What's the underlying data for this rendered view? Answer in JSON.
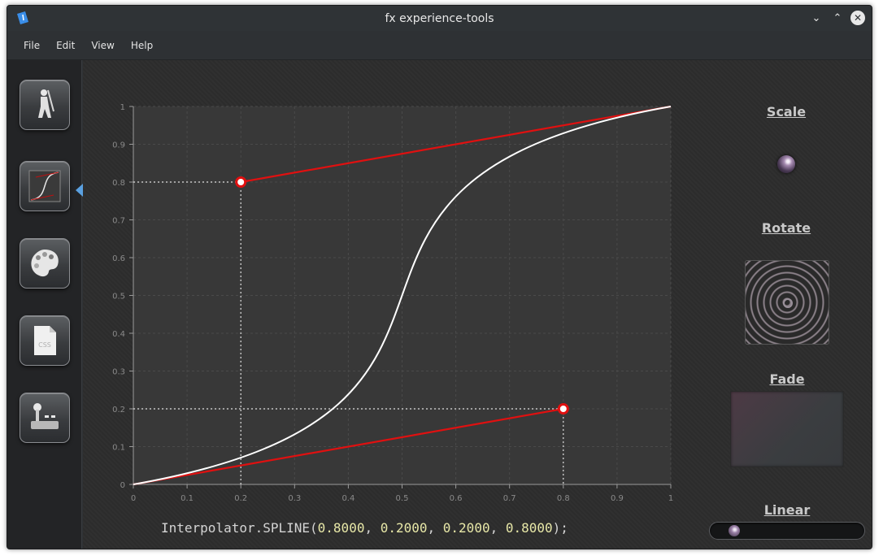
{
  "window": {
    "title": "fx experience-tools"
  },
  "menu": {
    "items": [
      "File",
      "Edit",
      "View",
      "Help"
    ]
  },
  "sidebar": {
    "items": [
      {
        "name": "mixer-tool",
        "icon": "figure-icon"
      },
      {
        "name": "interpolator-tool",
        "icon": "curve-chart-icon",
        "selected": true
      },
      {
        "name": "color-tool",
        "icon": "palette-icon"
      },
      {
        "name": "css-tool",
        "icon": "css-file-icon"
      },
      {
        "name": "controls-tool",
        "icon": "joystick-icon"
      }
    ]
  },
  "chart_data": {
    "type": "line",
    "title": "",
    "xlabel": "",
    "ylabel": "",
    "xlim": [
      0,
      1
    ],
    "ylim": [
      0,
      1
    ],
    "grid": true,
    "x_ticks": [
      "0",
      "0.1",
      "0.2",
      "0.3",
      "0.4",
      "0.5",
      "0.6",
      "0.7",
      "0.8",
      "0.9",
      "1"
    ],
    "y_ticks": [
      "0",
      "0.1",
      "0.2",
      "0.3",
      "0.4",
      "0.5",
      "0.6",
      "0.7",
      "0.8",
      "0.9",
      "1"
    ],
    "curve": {
      "type": "cubic-bezier",
      "p0": [
        0,
        0
      ],
      "p1": [
        0.8,
        0.2
      ],
      "p2": [
        0.2,
        0.8
      ],
      "p3": [
        1,
        1
      ],
      "color": "#ffffff"
    },
    "control_points": [
      {
        "x": 0.2,
        "y": 0.8
      },
      {
        "x": 0.8,
        "y": 0.2
      }
    ],
    "handle_color": "#e01010"
  },
  "formula": {
    "prefix": "Interpolator.SPLINE(",
    "values": [
      "0.8000",
      "0.2000",
      "0.2000",
      "0.8000"
    ],
    "suffix": ");"
  },
  "panels": {
    "scale_label": "Scale",
    "rotate_label": "Rotate",
    "fade_label": "Fade",
    "linear_label": "Linear",
    "linear_position": 0.12
  }
}
